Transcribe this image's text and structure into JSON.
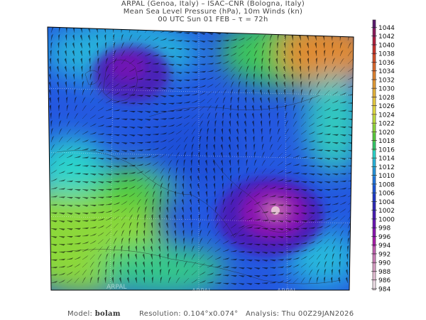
{
  "header": {
    "line1": "ARPAL (Genoa, Italy)  –  ISAC–CNR (Bologna, Italy)",
    "line2": "Mean Sea Level Pressure (hPa), 10m Winds (kn)",
    "line3": "00 UTC Sun 01 FEB  –  τ = 72h"
  },
  "colorbar": {
    "labels": [
      "1044",
      "1042",
      "1040",
      "1038",
      "1036",
      "1034",
      "1032",
      "1030",
      "1028",
      "1026",
      "1024",
      "1022",
      "1020",
      "1018",
      "1016",
      "1014",
      "1012",
      "1010",
      "1008",
      "1006",
      "1004",
      "1002",
      "1000",
      "998",
      "996",
      "994",
      "992",
      "990",
      "988",
      "986",
      "984"
    ],
    "colors": [
      "#5b1a6e",
      "#8a1a5a",
      "#b01e3c",
      "#c8322a",
      "#d4502a",
      "#dc6a2c",
      "#e08430",
      "#e39c36",
      "#e6b43c",
      "#e8cc40",
      "#e2dc40",
      "#bede3c",
      "#8cd83a",
      "#58cc3c",
      "#34c86a",
      "#2cd4cc",
      "#28b4dc",
      "#2494dc",
      "#2074e0",
      "#1c54d8",
      "#2038c8",
      "#3028b8",
      "#4a1cb4",
      "#6a14b4",
      "#8a14b0",
      "#a81ca8",
      "#c060b0",
      "#cc80b8",
      "#d8a0c4",
      "#e4c0d4",
      "#f0e0e8"
    ]
  },
  "watermark": "ARPAL",
  "footer": {
    "model_label": "Model:",
    "model_value": "bolam",
    "resolution": "Resolution: 0.104°x0.074°",
    "analysis": "Analysis: Thu 00Z29JAN2026"
  }
}
